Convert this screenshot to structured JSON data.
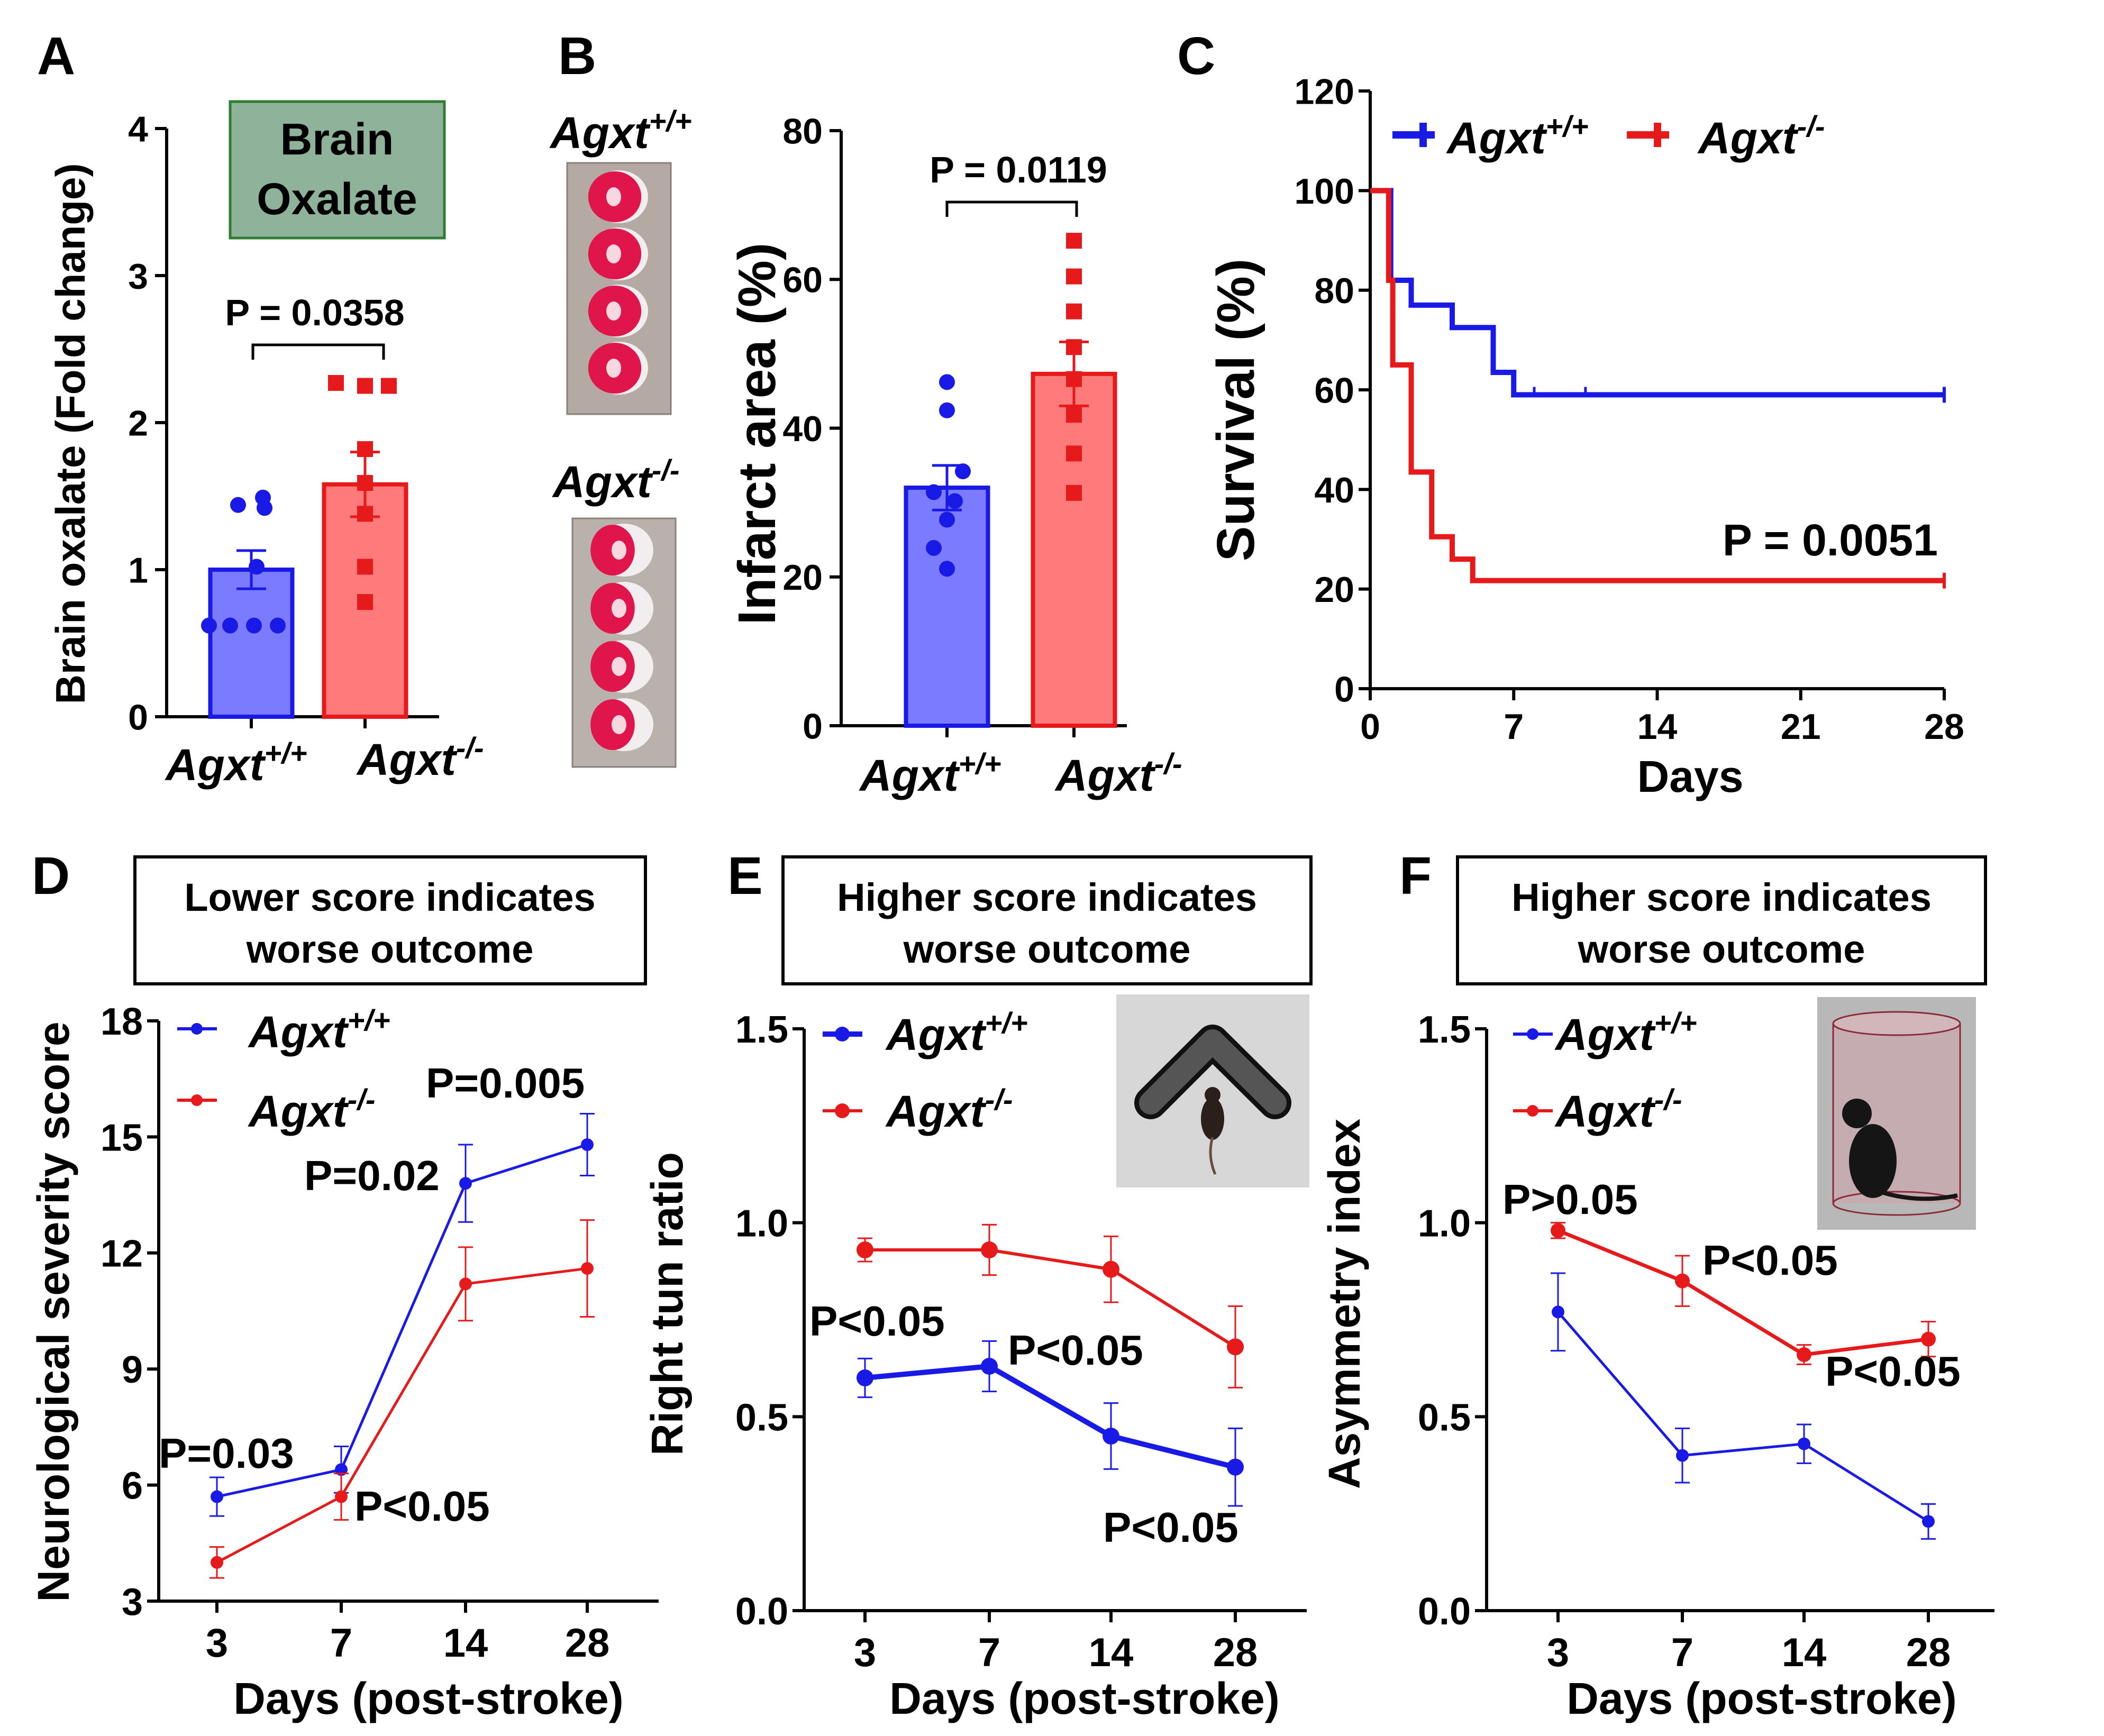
{
  "colors": {
    "wt": "#1a1ae6",
    "ko": "#e61a1a",
    "wt_fill": "#7b7bff",
    "ko_fill": "#ff7b7b",
    "green_box": "#8fb39a",
    "gray": "#d7d7d7"
  },
  "genotypes": {
    "wt_name": "Agxt",
    "wt_sup": "+/+",
    "ko_name": "Agxt",
    "ko_sup": "-/-"
  },
  "chart_data": [
    {
      "panel": "A",
      "type": "bar",
      "title": "Brain Oxalate",
      "title_line1": "Brain",
      "title_line2": "Oxalate",
      "ylabel": "Brain oxalate (Fold change)",
      "ylim": [
        0,
        4
      ],
      "yticks": [
        "0",
        "1",
        "2",
        "3",
        "4"
      ],
      "categories": [
        "Agxt +/+",
        "Agxt -/-"
      ],
      "values": [
        1.0,
        1.58
      ],
      "sem": [
        0.13,
        0.22
      ],
      "points": [
        [
          1.49,
          1.44,
          1.42,
          1.02,
          0.62,
          0.62,
          0.62,
          0.62
        ],
        [
          2.27,
          2.25,
          2.25,
          1.82,
          1.59,
          1.38,
          1.02,
          0.78
        ]
      ],
      "pvalue": "P = 0.0358"
    },
    {
      "panel": "B",
      "type": "bar",
      "ylabel": "Infarct area (%)",
      "ylim": [
        0,
        80
      ],
      "yticks": [
        "0",
        "20",
        "40",
        "60",
        "80"
      ],
      "categories": [
        "Agxt +/+",
        "Agxt -/-"
      ],
      "values": [
        32,
        47.3
      ],
      "sem": [
        3,
        4.3
      ],
      "points": [
        [
          46.2,
          42.4,
          34.2,
          31.4,
          30.2,
          27.7,
          23.9,
          21.1
        ],
        [
          65.2,
          60.4,
          55.7,
          50.9,
          46.6,
          41.8,
          36.6,
          31.3
        ]
      ],
      "pvalue": "P = 0.0119",
      "image_labels": {
        "top_name": "Agxt",
        "top_sup": "+/+",
        "bottom_name": "Agxt",
        "bottom_sup": "-/-"
      }
    },
    {
      "panel": "C",
      "type": "line",
      "xlabel": "Days",
      "ylabel": "Survival (%)",
      "xlim": [
        0,
        28
      ],
      "ylim": [
        0,
        120
      ],
      "xticks": [
        "0",
        "7",
        "14",
        "21",
        "28"
      ],
      "yticks": [
        "0",
        "20",
        "40",
        "60",
        "80",
        "100",
        "120"
      ],
      "series": [
        {
          "name": "Agxt +/+",
          "x": [
            0,
            1,
            1,
            2,
            2,
            4,
            4,
            6,
            6,
            7,
            7,
            28
          ],
          "y": [
            100,
            100,
            82,
            82,
            77,
            77,
            72.5,
            72.5,
            63.5,
            63.5,
            59,
            59
          ]
        },
        {
          "name": "Agxt -/-",
          "x": [
            0,
            0.9,
            0.9,
            1.1,
            1.1,
            2,
            2,
            3,
            3,
            4,
            4,
            5,
            5,
            28
          ],
          "y": [
            100,
            100,
            82,
            82,
            65,
            65,
            43.5,
            43.5,
            30.5,
            30.5,
            26,
            26,
            21.7,
            21.7
          ]
        }
      ],
      "pvalue": "P = 0.0051"
    },
    {
      "panel": "D",
      "type": "line",
      "note_line1": "Lower score indicates",
      "note_line2": "worse outcome",
      "xlabel": "Days (post-stroke)",
      "ylabel": "Neurological severity score",
      "categories": [
        "3",
        "7",
        "14",
        "28"
      ],
      "ylim": [
        3,
        18
      ],
      "yticks": [
        "3",
        "6",
        "9",
        "12",
        "15",
        "18"
      ],
      "series": [
        {
          "name": "Agxt +/+",
          "values": [
            5.7,
            6.4,
            13.8,
            14.8
          ],
          "sem": [
            0.5,
            0.6,
            1.0,
            0.8
          ]
        },
        {
          "name": "Agxt -/-",
          "values": [
            4.0,
            5.7,
            11.2,
            11.6
          ],
          "sem": [
            0.4,
            0.6,
            0.95,
            1.25
          ]
        }
      ],
      "pvalues": [
        "P=0.03",
        "P<0.05",
        "P=0.02",
        "P=0.005"
      ]
    },
    {
      "panel": "E",
      "type": "line",
      "note_line1": "Higher score indicates",
      "note_line2": "worse outcome",
      "xlabel": "Days (post-stroke)",
      "ylabel": "Right tun ratio",
      "categories": [
        "3",
        "7",
        "14",
        "28"
      ],
      "ylim": [
        0,
        1.5
      ],
      "yticks": [
        "0.0",
        "0.5",
        "1.0",
        "1.5"
      ],
      "series": [
        {
          "name": "Agxt +/+",
          "values": [
            0.6,
            0.63,
            0.45,
            0.37
          ],
          "sem": [
            0.05,
            0.065,
            0.085,
            0.1
          ]
        },
        {
          "name": "Agxt -/-",
          "values": [
            0.93,
            0.93,
            0.88,
            0.68
          ],
          "sem": [
            0.03,
            0.065,
            0.085,
            0.105
          ]
        }
      ],
      "pvalues": [
        "P<0.05",
        "P<0.05",
        "P<0.05"
      ]
    },
    {
      "panel": "F",
      "type": "line",
      "note_line1": "Higher score indicates",
      "note_line2": "worse outcome",
      "xlabel": "Days (post-stroke)",
      "ylabel": "Asymmetry index",
      "categories": [
        "3",
        "7",
        "14",
        "28"
      ],
      "ylim": [
        0,
        1.5
      ],
      "yticks": [
        "0.0",
        "0.5",
        "1.0",
        "1.5"
      ],
      "series": [
        {
          "name": "Agxt +/+",
          "values": [
            0.77,
            0.4,
            0.43,
            0.23
          ],
          "sem": [
            0.1,
            0.07,
            0.05,
            0.045
          ]
        },
        {
          "name": "Agxt -/-",
          "values": [
            0.98,
            0.85,
            0.66,
            0.7
          ],
          "sem": [
            0.02,
            0.065,
            0.025,
            0.045
          ]
        }
      ],
      "pvalues": [
        "P>0.05",
        "P<0.05",
        "P<0.05"
      ]
    }
  ]
}
